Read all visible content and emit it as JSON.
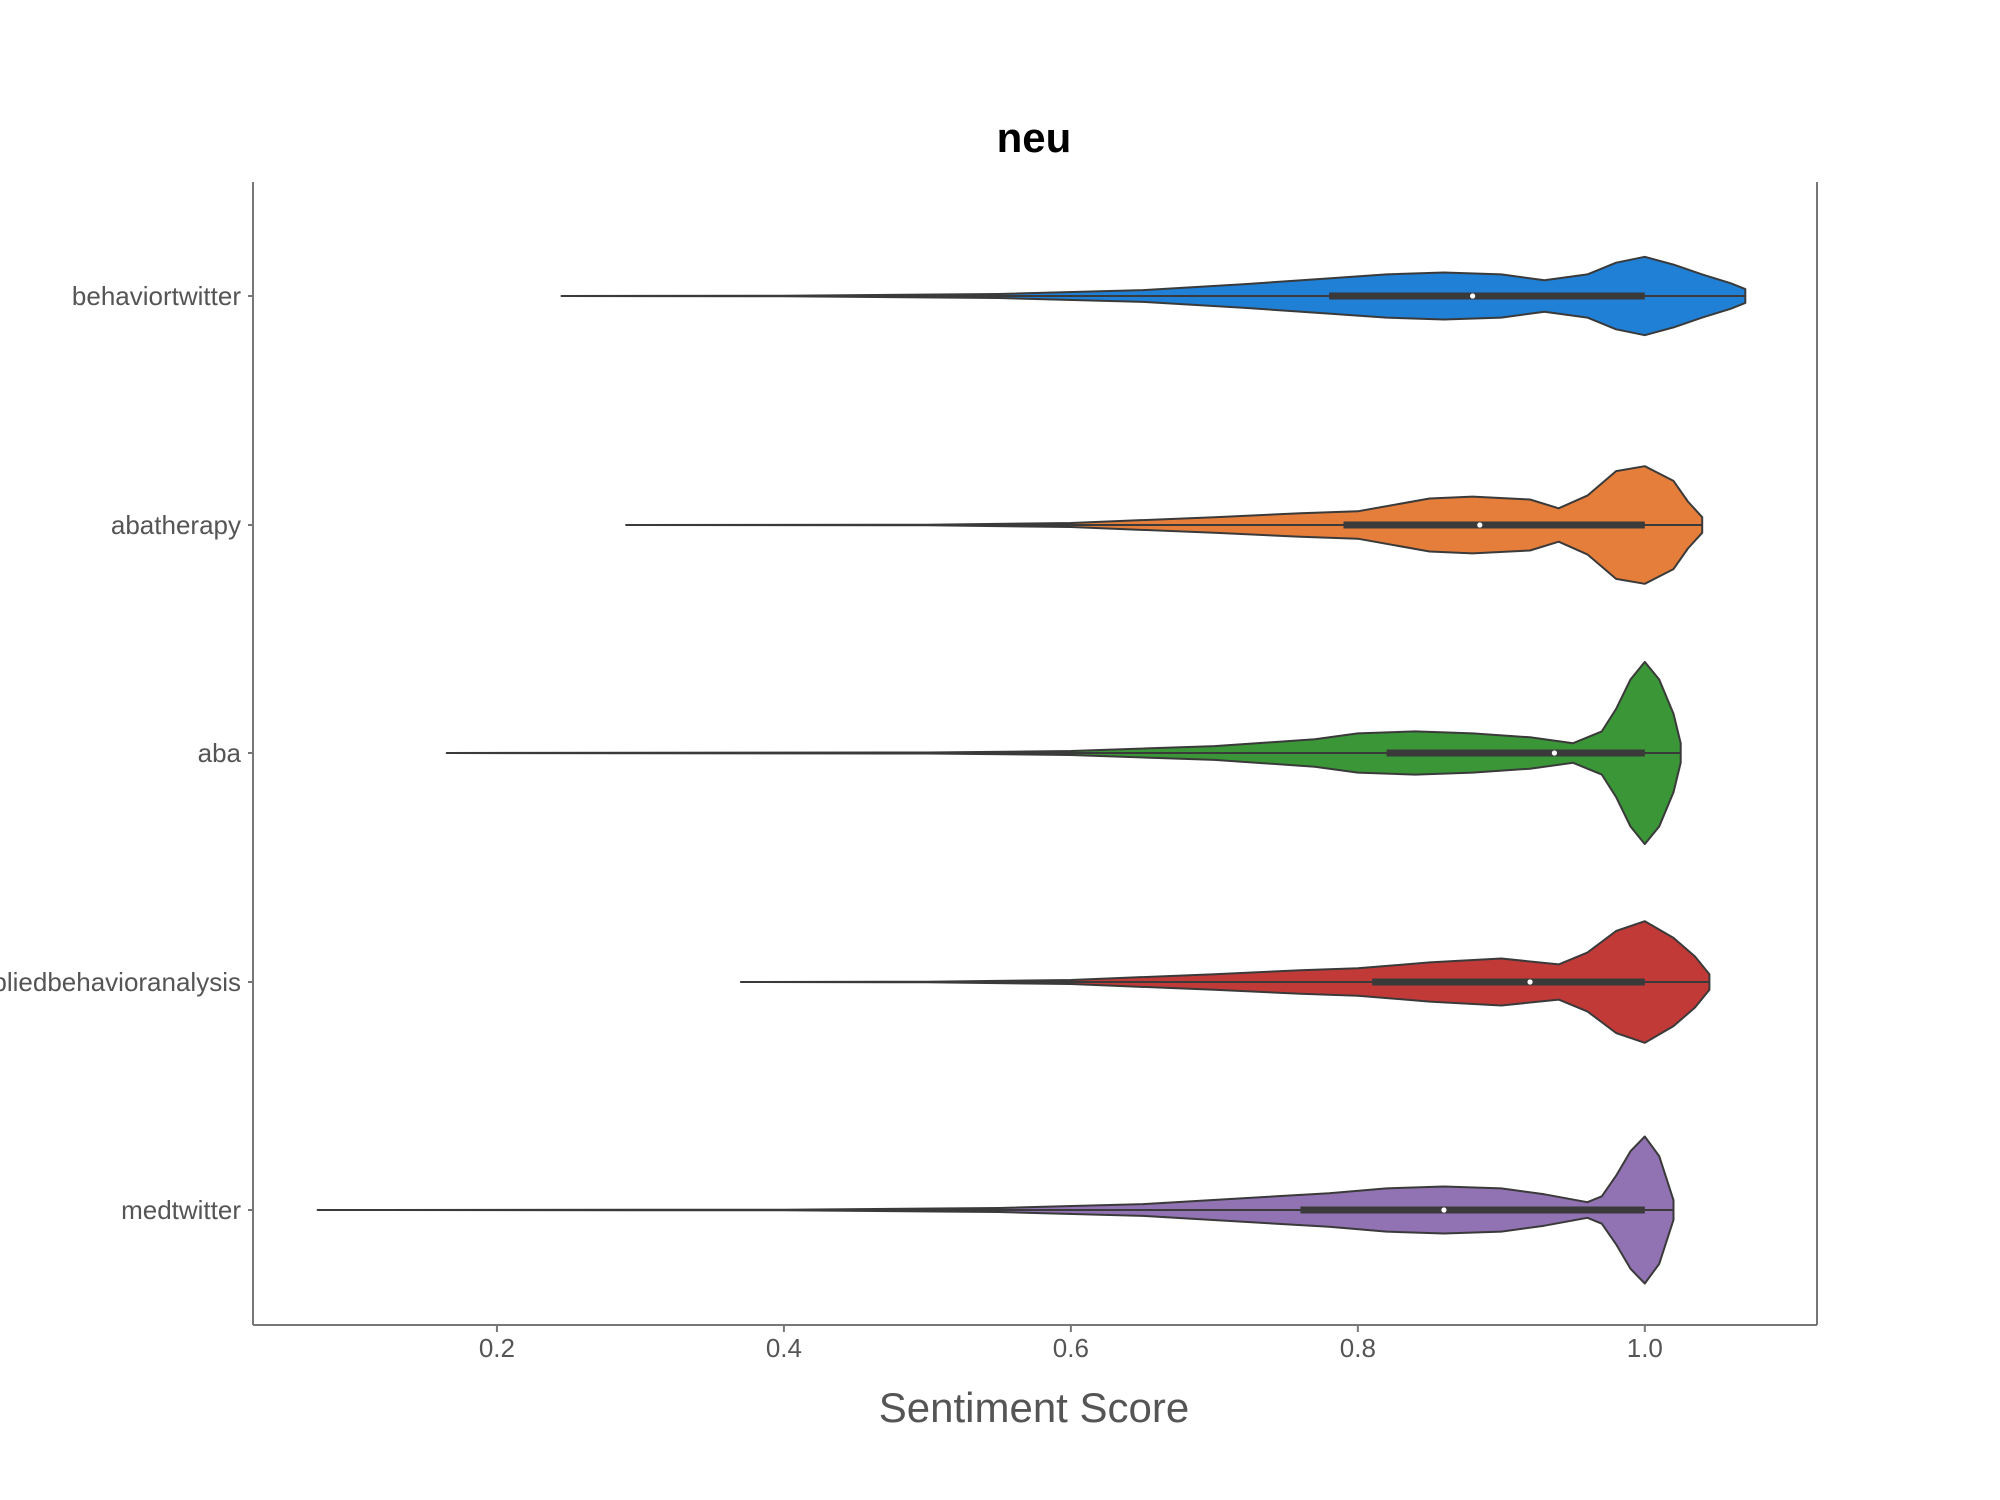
{
  "chart_data": {
    "type": "violin",
    "title": "neu",
    "xlabel": "Sentiment Score",
    "ylabel": "",
    "xlim": [
      0.03,
      1.12
    ],
    "x_ticks": [
      {
        "value": 0.2,
        "label": "0.2"
      },
      {
        "value": 0.4,
        "label": "0.4"
      },
      {
        "value": 0.6,
        "label": "0.6"
      },
      {
        "value": 0.8,
        "label": "0.8"
      },
      {
        "value": 1.0,
        "label": "1.0"
      }
    ],
    "grid": false,
    "series": [
      {
        "name": "behaviortwitter",
        "color": "#1f80d6",
        "min": 0.245,
        "q1": 0.78,
        "median": 0.88,
        "q3": 1.0,
        "max": 1.07,
        "density": [
          [
            0.245,
            0
          ],
          [
            0.4,
            0.003
          ],
          [
            0.55,
            0.02
          ],
          [
            0.65,
            0.06
          ],
          [
            0.72,
            0.12
          ],
          [
            0.78,
            0.18
          ],
          [
            0.82,
            0.22
          ],
          [
            0.86,
            0.24
          ],
          [
            0.9,
            0.22
          ],
          [
            0.93,
            0.16
          ],
          [
            0.96,
            0.22
          ],
          [
            0.98,
            0.34
          ],
          [
            1.0,
            0.4
          ],
          [
            1.02,
            0.32
          ],
          [
            1.04,
            0.22
          ],
          [
            1.06,
            0.13
          ],
          [
            1.07,
            0.07
          ]
        ]
      },
      {
        "name": "abatherapy",
        "color": "#e67e3b",
        "min": 0.29,
        "q1": 0.79,
        "median": 0.885,
        "q3": 1.0,
        "max": 1.04,
        "density": [
          [
            0.29,
            0
          ],
          [
            0.5,
            0.003
          ],
          [
            0.6,
            0.02
          ],
          [
            0.7,
            0.08
          ],
          [
            0.76,
            0.12
          ],
          [
            0.8,
            0.14
          ],
          [
            0.85,
            0.27
          ],
          [
            0.88,
            0.29
          ],
          [
            0.92,
            0.26
          ],
          [
            0.94,
            0.17
          ],
          [
            0.96,
            0.3
          ],
          [
            0.98,
            0.55
          ],
          [
            1.0,
            0.6
          ],
          [
            1.02,
            0.45
          ],
          [
            1.03,
            0.24
          ],
          [
            1.04,
            0.08
          ]
        ]
      },
      {
        "name": "aba",
        "color": "#3a9637",
        "min": 0.165,
        "q1": 0.82,
        "median": 0.937,
        "q3": 1.0,
        "max": 1.025,
        "density": [
          [
            0.165,
            0
          ],
          [
            0.5,
            0.005
          ],
          [
            0.6,
            0.02
          ],
          [
            0.7,
            0.07
          ],
          [
            0.77,
            0.14
          ],
          [
            0.8,
            0.2
          ],
          [
            0.84,
            0.22
          ],
          [
            0.88,
            0.2
          ],
          [
            0.92,
            0.16
          ],
          [
            0.95,
            0.1
          ],
          [
            0.97,
            0.22
          ],
          [
            0.98,
            0.45
          ],
          [
            0.99,
            0.75
          ],
          [
            1.0,
            0.93
          ],
          [
            1.01,
            0.75
          ],
          [
            1.02,
            0.4
          ],
          [
            1.025,
            0.1
          ]
        ]
      },
      {
        "name": "appliedbehavioranalysis",
        "color": "#c23a38",
        "min": 0.37,
        "q1": 0.81,
        "median": 0.92,
        "q3": 1.0,
        "max": 1.045,
        "density": [
          [
            0.37,
            0
          ],
          [
            0.5,
            0.003
          ],
          [
            0.6,
            0.02
          ],
          [
            0.7,
            0.08
          ],
          [
            0.76,
            0.12
          ],
          [
            0.8,
            0.14
          ],
          [
            0.85,
            0.2
          ],
          [
            0.9,
            0.24
          ],
          [
            0.94,
            0.18
          ],
          [
            0.96,
            0.3
          ],
          [
            0.98,
            0.52
          ],
          [
            1.0,
            0.62
          ],
          [
            1.02,
            0.45
          ],
          [
            1.035,
            0.26
          ],
          [
            1.045,
            0.08
          ]
        ]
      },
      {
        "name": "medtwitter",
        "color": "#9172b2",
        "min": 0.075,
        "q1": 0.76,
        "median": 0.86,
        "q3": 1.0,
        "max": 1.02,
        "density": [
          [
            0.075,
            0
          ],
          [
            0.4,
            0.003
          ],
          [
            0.55,
            0.02
          ],
          [
            0.65,
            0.06
          ],
          [
            0.72,
            0.12
          ],
          [
            0.78,
            0.17
          ],
          [
            0.82,
            0.22
          ],
          [
            0.86,
            0.24
          ],
          [
            0.9,
            0.22
          ],
          [
            0.93,
            0.16
          ],
          [
            0.96,
            0.08
          ],
          [
            0.97,
            0.14
          ],
          [
            0.98,
            0.35
          ],
          [
            0.99,
            0.6
          ],
          [
            1.0,
            0.75
          ],
          [
            1.01,
            0.55
          ],
          [
            1.02,
            0.1
          ]
        ]
      }
    ]
  }
}
